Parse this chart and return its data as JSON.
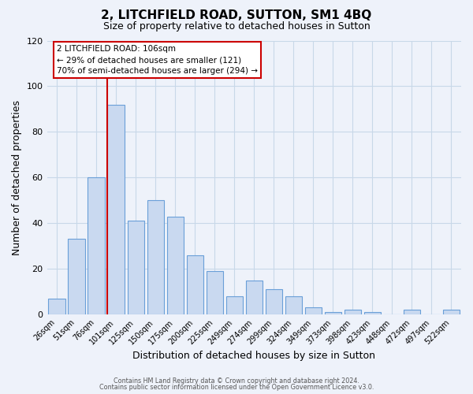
{
  "title": "2, LITCHFIELD ROAD, SUTTON, SM1 4BQ",
  "subtitle": "Size of property relative to detached houses in Sutton",
  "xlabel": "Distribution of detached houses by size in Sutton",
  "ylabel": "Number of detached properties",
  "categories": [
    "26sqm",
    "51sqm",
    "76sqm",
    "101sqm",
    "125sqm",
    "150sqm",
    "175sqm",
    "200sqm",
    "225sqm",
    "249sqm",
    "274sqm",
    "299sqm",
    "324sqm",
    "349sqm",
    "373sqm",
    "398sqm",
    "423sqm",
    "448sqm",
    "472sqm",
    "497sqm",
    "522sqm"
  ],
  "values": [
    7,
    33,
    60,
    92,
    41,
    50,
    43,
    26,
    19,
    8,
    15,
    11,
    8,
    3,
    1,
    2,
    1,
    0,
    2,
    0,
    2
  ],
  "bar_color": "#c9d9f0",
  "bar_edge_color": "#6a9fd8",
  "grid_color": "#c8d8e8",
  "background_color": "#eef2fa",
  "vline_color": "#cc0000",
  "vline_x_index": 3,
  "ylim": [
    0,
    120
  ],
  "yticks": [
    0,
    20,
    40,
    60,
    80,
    100,
    120
  ],
  "annotation_lines": [
    "2 LITCHFIELD ROAD: 106sqm",
    "← 29% of detached houses are smaller (121)",
    "70% of semi-detached houses are larger (294) →"
  ],
  "footer1": "Contains HM Land Registry data © Crown copyright and database right 2024.",
  "footer2": "Contains public sector information licensed under the Open Government Licence v3.0."
}
